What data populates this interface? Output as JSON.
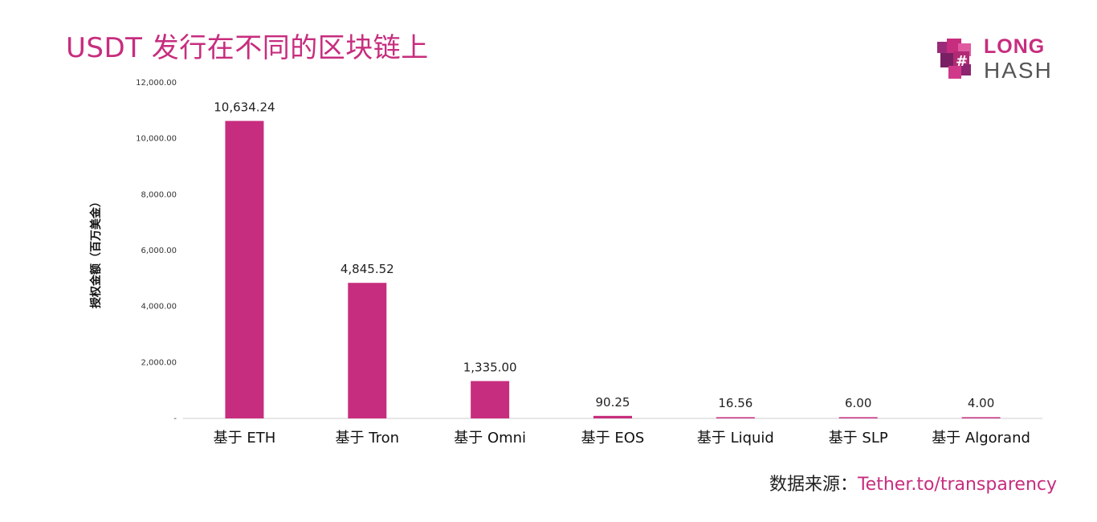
{
  "title": "USDT 发行在不同的区块链上",
  "logo": {
    "line1": "LONG",
    "line2": "HASH",
    "icon": "longhash-cube-logo"
  },
  "source": {
    "prefix": "数据来源：",
    "link": "Tether.to/transparency"
  },
  "colors": {
    "accent": "#c72d7e",
    "axis": "#cccccc"
  },
  "chart_data": {
    "type": "bar",
    "ylabel": "授权金额（百万美金）",
    "xlabel": "",
    "ylim": [
      0,
      12000
    ],
    "yticks": [
      {
        "value": 0,
        "label": "-"
      },
      {
        "value": 2000,
        "label": "2,000.00"
      },
      {
        "value": 4000,
        "label": "4,000.00"
      },
      {
        "value": 6000,
        "label": "6,000.00"
      },
      {
        "value": 8000,
        "label": "8,000.00"
      },
      {
        "value": 10000,
        "label": "10,000.00"
      },
      {
        "value": 12000,
        "label": "12,000.00"
      }
    ],
    "categories": [
      "基于 ETH",
      "基于 Tron",
      "基于 Omni",
      "基于 EOS",
      "基于 Liquid",
      "基于 SLP",
      "基于 Algorand"
    ],
    "values": [
      10634.24,
      4845.52,
      1335.0,
      90.25,
      16.56,
      6.0,
      4.0
    ],
    "data_labels": [
      "10,634.24",
      "4,845.52",
      "1,335.00",
      "90.25",
      "16.56",
      "6.00",
      "4.00"
    ],
    "grid": false,
    "legend": "none"
  }
}
